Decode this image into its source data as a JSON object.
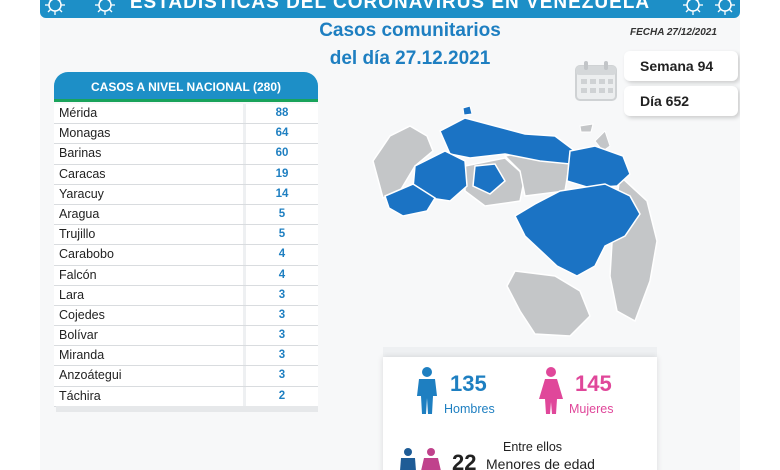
{
  "header": {
    "banner_title": "ESTADÍSTICAS DEL CORONAVIRUS EN VENEZUELA",
    "title_line1": "Casos comunitarios",
    "title_line2": "del día 27.12.2021",
    "fecha": "FECHA 27/12/2021"
  },
  "calendar": {
    "icon": "calendar-icon",
    "semana": "Semana 94",
    "dia": "Día 652"
  },
  "table": {
    "header": "CASOS A NIVEL NACIONAL  (280)",
    "rows": [
      {
        "state": "Mérida",
        "cases": "88"
      },
      {
        "state": "Monagas",
        "cases": "64"
      },
      {
        "state": "Barinas",
        "cases": "60"
      },
      {
        "state": "Caracas",
        "cases": "19"
      },
      {
        "state": "Yaracuy",
        "cases": "14"
      },
      {
        "state": "Aragua",
        "cases": "5"
      },
      {
        "state": "Trujillo",
        "cases": "5"
      },
      {
        "state": "Carabobo",
        "cases": "4"
      },
      {
        "state": "Falcón",
        "cases": "4"
      },
      {
        "state": "Lara",
        "cases": "3"
      },
      {
        "state": "Cojedes",
        "cases": "3"
      },
      {
        "state": "Bolívar",
        "cases": "3"
      },
      {
        "state": "Miranda",
        "cases": "3"
      },
      {
        "state": "Anzoátegui",
        "cases": "3"
      },
      {
        "state": "Táchira",
        "cases": "2"
      }
    ]
  },
  "gender": {
    "hombres_count": "135",
    "hombres_label": "Hombres",
    "mujeres_count": "145",
    "mujeres_label": "Mujeres",
    "entre_ellos": "Entre ellos",
    "menores_count": "22",
    "menores_label": "Menores de edad",
    "male_color": "#1e7fc1",
    "female_color": "#e0479a"
  },
  "colors": {
    "accent_blue": "#1d8fc7",
    "map_affected": "#1b73c4",
    "map_unaffected": "#c4c6c8"
  }
}
